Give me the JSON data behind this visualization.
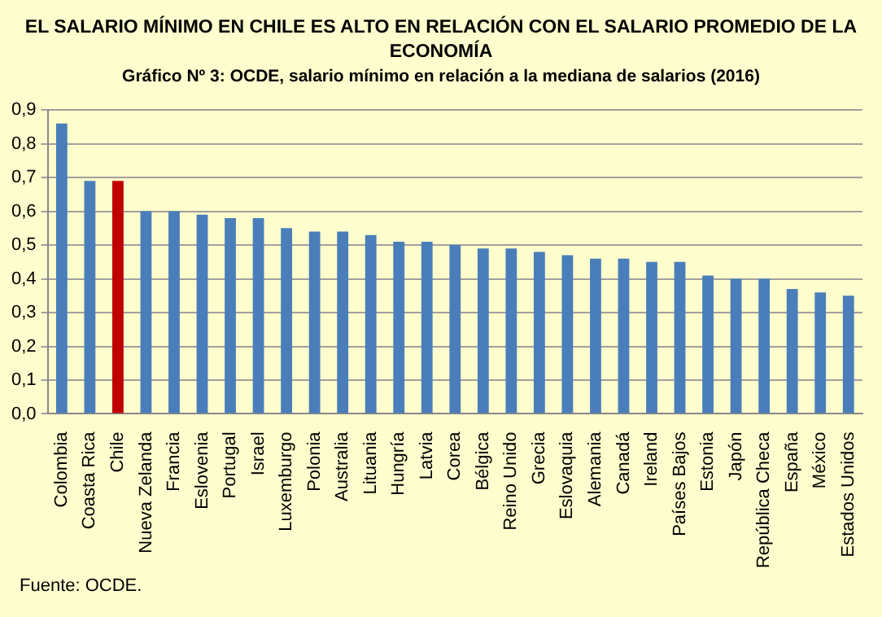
{
  "chart_data": {
    "type": "bar",
    "title": "EL SALARIO MÍNIMO EN CHILE ES ALTO EN RELACIÓN CON EL SALARIO PROMEDIO DE LA ECONOMÍA",
    "subtitle": "Gráfico Nº 3: OCDE, salario mínimo en relación a la mediana de salarios (2016)",
    "categories": [
      "Colombia",
      "Coasta Rica",
      "Chile",
      "Nueva Zelanda",
      "Francia",
      "Eslovenia",
      "Portugal",
      "Israel",
      "Luxemburgo",
      "Polonia",
      "Australia",
      "Lituania",
      "Hungría",
      "Latvia",
      "Corea",
      "Bélgica",
      "Reino Unido",
      "Grecia",
      "Eslovaquia",
      "Alemania",
      "Canadá",
      "Ireland",
      "Países Bajos",
      "Estonia",
      "Japón",
      "República Checa",
      "España",
      "México",
      "Estados Unidos"
    ],
    "values": [
      0.86,
      0.69,
      0.69,
      0.6,
      0.6,
      0.59,
      0.58,
      0.58,
      0.55,
      0.54,
      0.54,
      0.53,
      0.51,
      0.51,
      0.5,
      0.49,
      0.49,
      0.48,
      0.47,
      0.46,
      0.46,
      0.45,
      0.45,
      0.41,
      0.4,
      0.4,
      0.37,
      0.36,
      0.35
    ],
    "colors": [
      "#4a7ebb",
      "#4a7ebb",
      "#c00000",
      "#4a7ebb",
      "#4a7ebb",
      "#4a7ebb",
      "#4a7ebb",
      "#4a7ebb",
      "#4a7ebb",
      "#4a7ebb",
      "#4a7ebb",
      "#4a7ebb",
      "#4a7ebb",
      "#4a7ebb",
      "#4a7ebb",
      "#4a7ebb",
      "#4a7ebb",
      "#4a7ebb",
      "#4a7ebb",
      "#4a7ebb",
      "#4a7ebb",
      "#4a7ebb",
      "#4a7ebb",
      "#4a7ebb",
      "#4a7ebb",
      "#4a7ebb",
      "#4a7ebb",
      "#4a7ebb",
      "#4a7ebb"
    ],
    "ylim": [
      0,
      0.9
    ],
    "yticks": [
      {
        "value": 0,
        "label": "0,0"
      },
      {
        "value": 0.1,
        "label": "0,1"
      },
      {
        "value": 0.2,
        "label": "0,2"
      },
      {
        "value": 0.3,
        "label": "0,3"
      },
      {
        "value": 0.4,
        "label": "0,4"
      },
      {
        "value": 0.5,
        "label": "0,5"
      },
      {
        "value": 0.6,
        "label": "0,6"
      },
      {
        "value": 0.7,
        "label": "0,7"
      },
      {
        "value": 0.8,
        "label": "0,8"
      },
      {
        "value": 0.9,
        "label": "0,9"
      }
    ],
    "grid": "y",
    "legend": false,
    "annotations": [
      "Fuente: OCDE."
    ]
  }
}
